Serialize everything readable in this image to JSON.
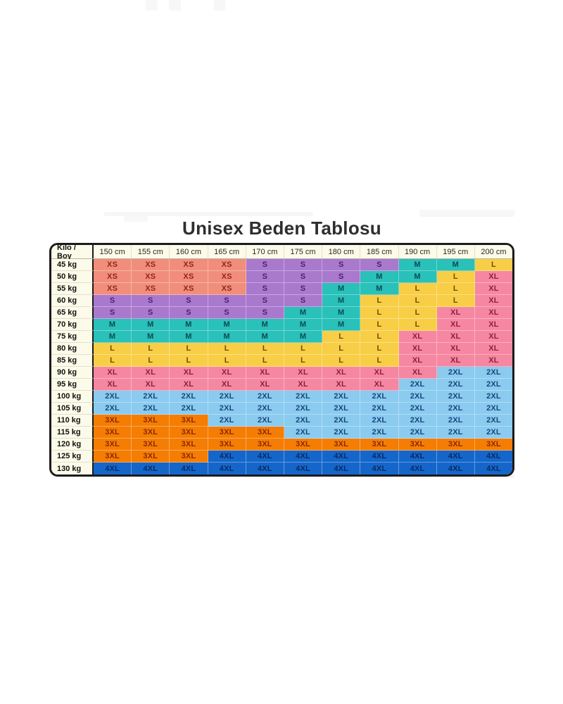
{
  "title": "Unisex Beden Tablosu",
  "chart_data": {
    "type": "table",
    "title": "Unisex Beden Tablosu",
    "corner_label": "Kilo / Boy",
    "columns": [
      "150 cm",
      "155 cm",
      "160 cm",
      "165 cm",
      "170 cm",
      "175 cm",
      "180 cm",
      "185 cm",
      "190 cm",
      "195 cm",
      "200 cm"
    ],
    "rows": [
      {
        "label": "45 kg",
        "sizes": [
          "XS",
          "XS",
          "XS",
          "XS",
          "S",
          "S",
          "S",
          "S",
          "M",
          "M",
          "L"
        ]
      },
      {
        "label": "50 kg",
        "sizes": [
          "XS",
          "XS",
          "XS",
          "XS",
          "S",
          "S",
          "S",
          "M",
          "M",
          "L",
          "XL"
        ]
      },
      {
        "label": "55 kg",
        "sizes": [
          "XS",
          "XS",
          "XS",
          "XS",
          "S",
          "S",
          "M",
          "M",
          "L",
          "L",
          "XL"
        ]
      },
      {
        "label": "60 kg",
        "sizes": [
          "S",
          "S",
          "S",
          "S",
          "S",
          "S",
          "M",
          "L",
          "L",
          "L",
          "XL"
        ]
      },
      {
        "label": "65 kg",
        "sizes": [
          "S",
          "S",
          "S",
          "S",
          "S",
          "M",
          "M",
          "L",
          "L",
          "XL",
          "XL"
        ]
      },
      {
        "label": "70 kg",
        "sizes": [
          "M",
          "M",
          "M",
          "M",
          "M",
          "M",
          "M",
          "L",
          "L",
          "XL",
          "XL"
        ]
      },
      {
        "label": "75 kg",
        "sizes": [
          "M",
          "M",
          "M",
          "M",
          "M",
          "M",
          "L",
          "L",
          "XL",
          "XL",
          "XL"
        ]
      },
      {
        "label": "80 kg",
        "sizes": [
          "L",
          "L",
          "L",
          "L",
          "L",
          "L",
          "L",
          "L",
          "XL",
          "XL",
          "XL"
        ]
      },
      {
        "label": "85 kg",
        "sizes": [
          "L",
          "L",
          "L",
          "L",
          "L",
          "L",
          "L",
          "L",
          "XL",
          "XL",
          "XL"
        ]
      },
      {
        "label": "90 kg",
        "sizes": [
          "XL",
          "XL",
          "XL",
          "XL",
          "XL",
          "XL",
          "XL",
          "XL",
          "XL",
          "2XL",
          "2XL"
        ]
      },
      {
        "label": "95 kg",
        "sizes": [
          "XL",
          "XL",
          "XL",
          "XL",
          "XL",
          "XL",
          "XL",
          "XL",
          "2XL",
          "2XL",
          "2XL"
        ]
      },
      {
        "label": "100 kg",
        "sizes": [
          "2XL",
          "2XL",
          "2XL",
          "2XL",
          "2XL",
          "2XL",
          "2XL",
          "2XL",
          "2XL",
          "2XL",
          "2XL"
        ]
      },
      {
        "label": "105 kg",
        "sizes": [
          "2XL",
          "2XL",
          "2XL",
          "2XL",
          "2XL",
          "2XL",
          "2XL",
          "2XL",
          "2XL",
          "2XL",
          "2XL"
        ]
      },
      {
        "label": "110 kg",
        "sizes": [
          "3XL",
          "3XL",
          "3XL",
          "2XL",
          "2XL",
          "2XL",
          "2XL",
          "2XL",
          "2XL",
          "2XL",
          "2XL"
        ]
      },
      {
        "label": "115 kg",
        "sizes": [
          "3XL",
          "3XL",
          "3XL",
          "3XL",
          "3XL",
          "2XL",
          "2XL",
          "2XL",
          "2XL",
          "2XL",
          "2XL"
        ]
      },
      {
        "label": "120 kg",
        "sizes": [
          "3XL",
          "3XL",
          "3XL",
          "3XL",
          "3XL",
          "3XL",
          "3XL",
          "3XL",
          "3XL",
          "3XL",
          "3XL"
        ]
      },
      {
        "label": "125 kg",
        "sizes": [
          "3XL",
          "3XL",
          "3XL",
          "4XL",
          "4XL",
          "4XL",
          "4XL",
          "4XL",
          "4XL",
          "4XL",
          "4XL"
        ]
      },
      {
        "label": "130 kg",
        "sizes": [
          "4XL",
          "4XL",
          "4XL",
          "4XL",
          "4XL",
          "4XL",
          "4XL",
          "4XL",
          "4XL",
          "4XL",
          "4XL"
        ]
      }
    ],
    "size_colors": {
      "XS": {
        "bg": "#F18E7B",
        "text": "#8E271A"
      },
      "S": {
        "bg": "#A979CE",
        "text": "#4E2070"
      },
      "M": {
        "bg": "#29C1BA",
        "text": "#0D4A52"
      },
      "L": {
        "bg": "#F8CE46",
        "text": "#6E4E08"
      },
      "XL": {
        "bg": "#F687A2",
        "text": "#8F1E3C"
      },
      "2XL": {
        "bg": "#8ACBEF",
        "text": "#17477B"
      },
      "3XL": {
        "bg": "#F57D03",
        "text": "#8B2800"
      },
      "4XL": {
        "bg": "#1566CA",
        "text": "#082A63"
      }
    }
  }
}
